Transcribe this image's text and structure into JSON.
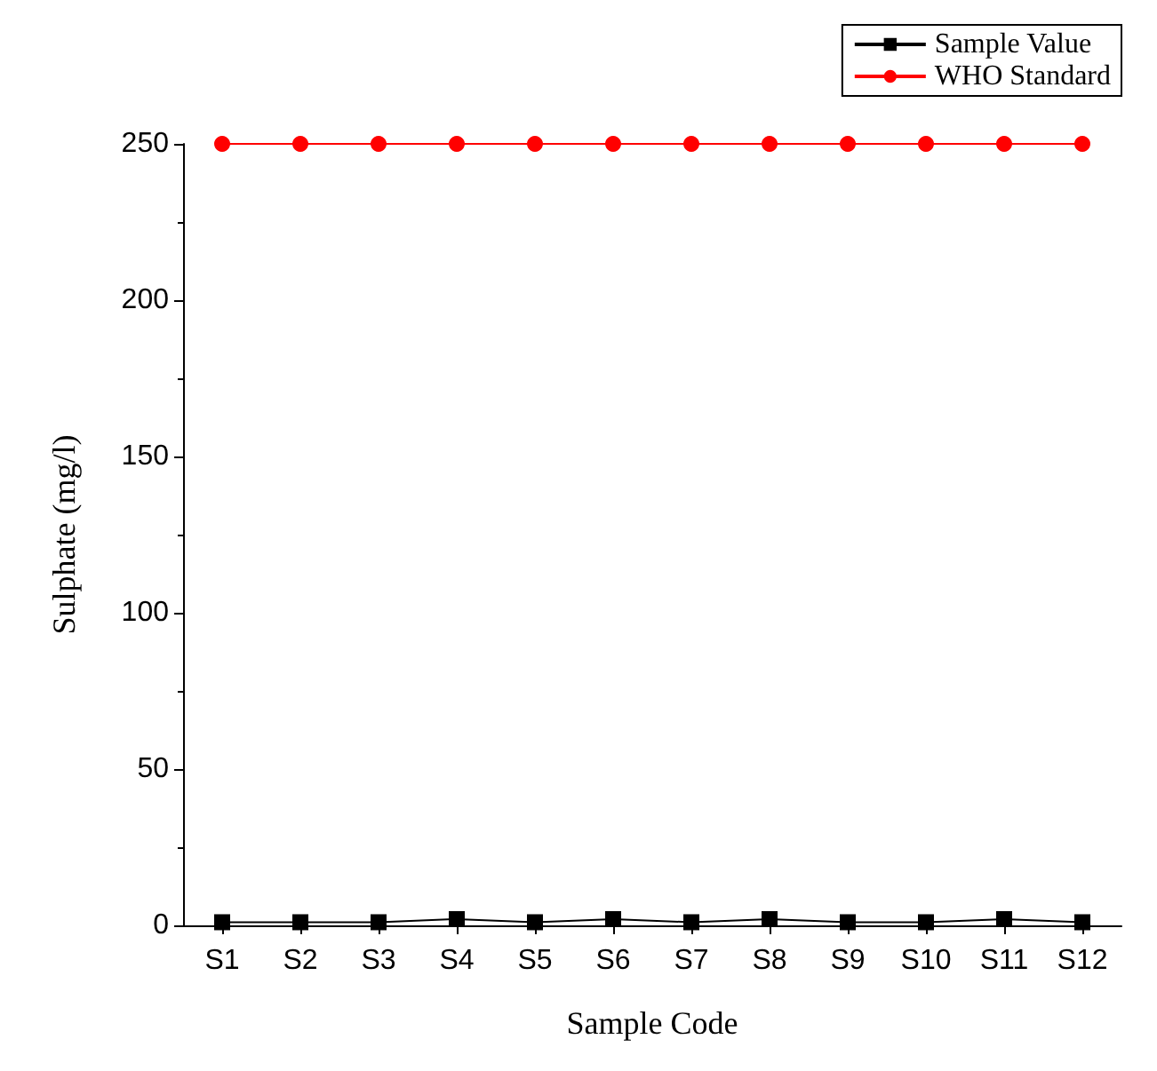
{
  "chart_data": {
    "type": "line",
    "xlabel": "Sample Code",
    "ylabel": "Sulphate (mg/l)",
    "categories": [
      "S1",
      "S2",
      "S3",
      "S4",
      "S5",
      "S6",
      "S7",
      "S8",
      "S9",
      "S10",
      "S11",
      "S12"
    ],
    "series": [
      {
        "name": "Sample Value",
        "color": "#000000",
        "marker": "square",
        "values": [
          1,
          1,
          1,
          2,
          1,
          2,
          1,
          2,
          1,
          1,
          2,
          1
        ]
      },
      {
        "name": "WHO Standard",
        "color": "#ff0000",
        "marker": "circle",
        "values": [
          250,
          250,
          250,
          250,
          250,
          250,
          250,
          250,
          250,
          250,
          250,
          250
        ]
      }
    ],
    "ylim": [
      0,
      250
    ],
    "yticks": [
      0,
      50,
      100,
      150,
      200,
      250
    ],
    "grid": false,
    "legend": "top right",
    "line_style": "solid"
  }
}
